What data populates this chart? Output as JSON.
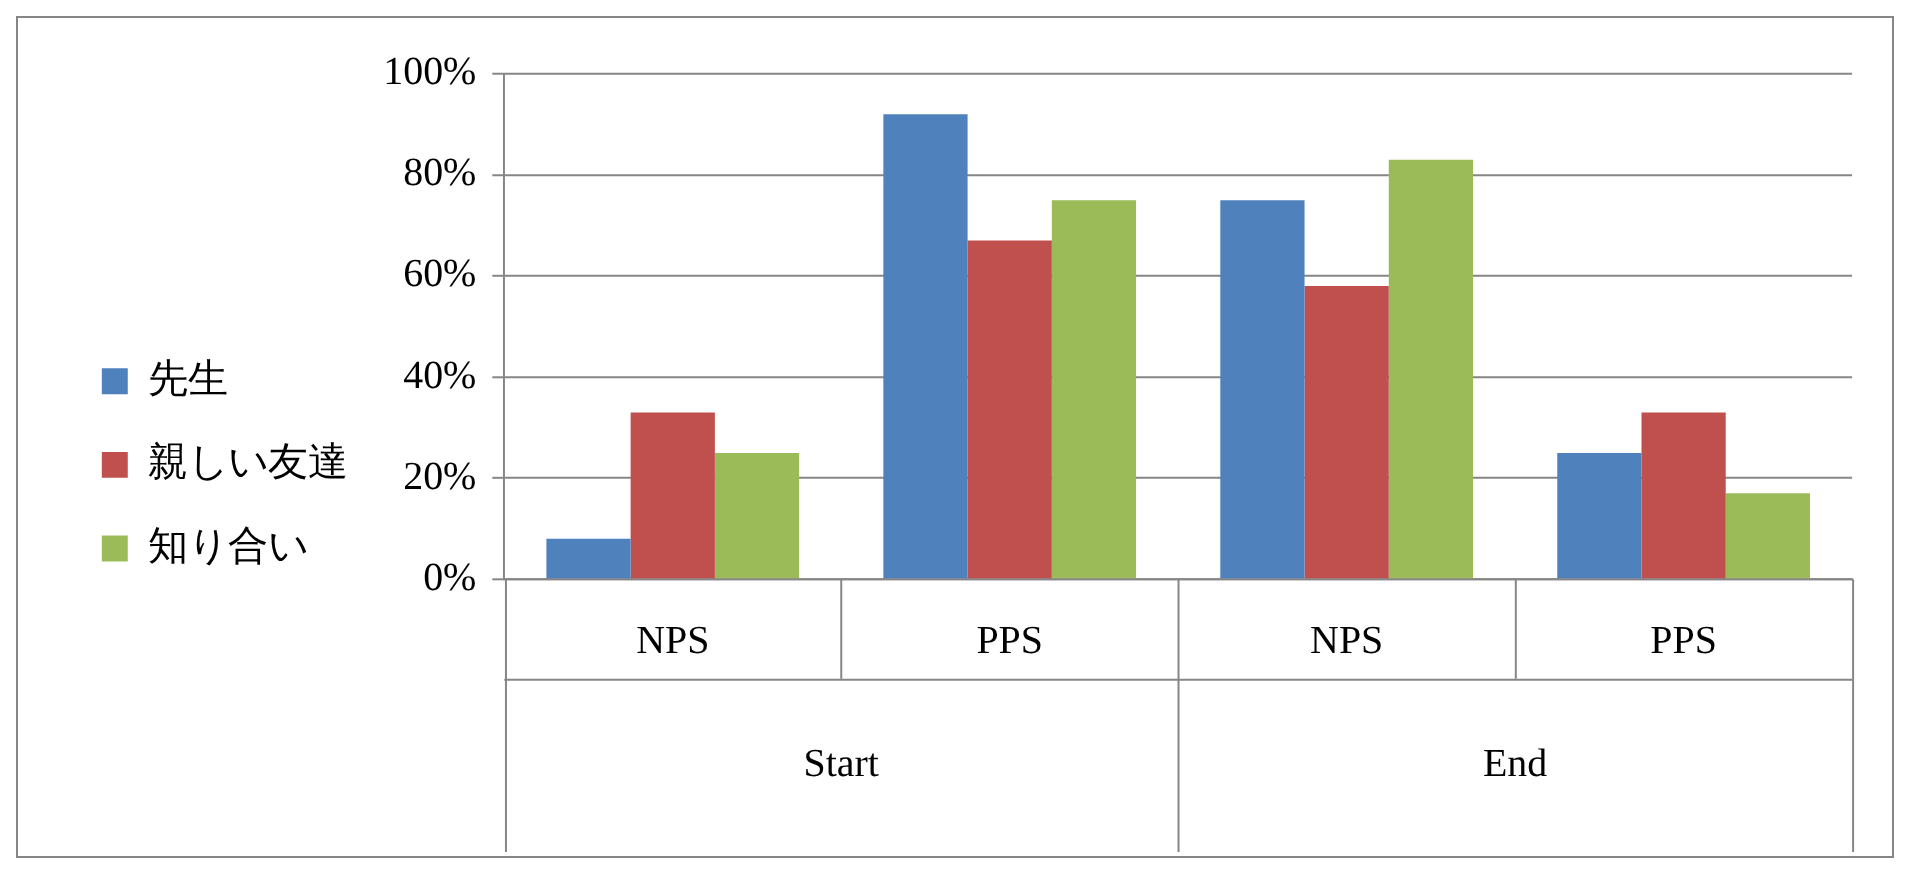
{
  "chart_data": {
    "type": "bar",
    "categories": [
      "NPS",
      "PPS",
      "NPS",
      "PPS"
    ],
    "series": [
      {
        "name": "先生",
        "color": "#4f81bd",
        "values": [
          8,
          92,
          75,
          25
        ]
      },
      {
        "name": "親しい友達",
        "color": "#c0504d",
        "values": [
          33,
          67,
          58,
          33
        ]
      },
      {
        "name": "知り合い",
        "color": "#9bbb59",
        "values": [
          25,
          75,
          83,
          17
        ]
      }
    ],
    "ylim": [
      0,
      100
    ],
    "yticks": [
      {
        "value": 0,
        "label": "0%"
      },
      {
        "value": 20,
        "label": "20%"
      },
      {
        "value": 40,
        "label": "40%"
      },
      {
        "value": 60,
        "label": "60%"
      },
      {
        "value": 80,
        "label": "80%"
      },
      {
        "value": 100,
        "label": "100%"
      }
    ],
    "grid": "y",
    "legend": "left",
    "annotations": [
      "Start",
      "End"
    ]
  }
}
